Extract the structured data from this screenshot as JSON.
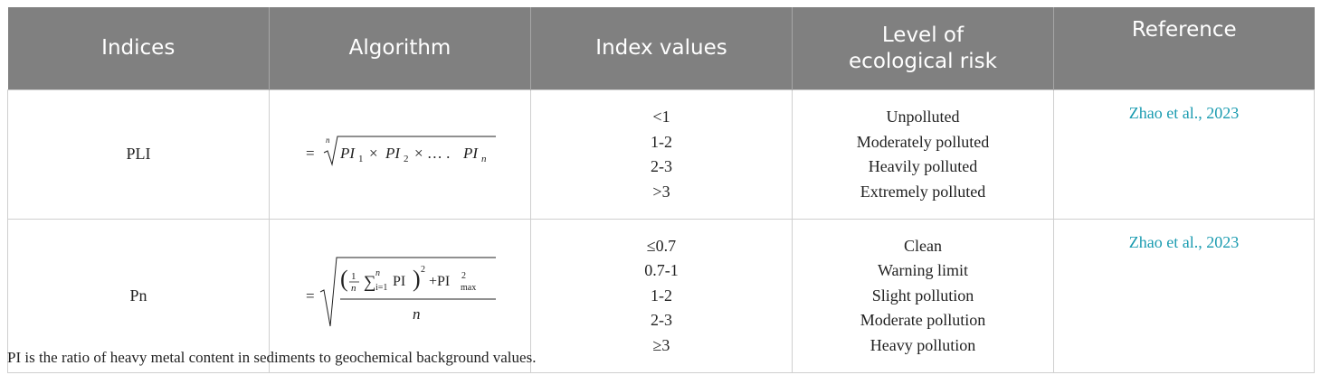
{
  "headers": {
    "indices": "Indices",
    "algorithm": "Algorithm",
    "index_values": "Index values",
    "level_line1": "Level of",
    "level_line2": "ecological risk",
    "reference": "Reference"
  },
  "rows": [
    {
      "index": "PLI",
      "formula": {
        "eq": "=",
        "root_index": "n",
        "t1": "PI",
        "s1": "1",
        "x1": "×",
        "t2": "PI",
        "s2": "2",
        "x2": "× … .",
        "t3": "PI",
        "s3": "n"
      },
      "values": [
        "<1",
        "1-2",
        "2-3",
        ">3"
      ],
      "levels": [
        "Unpolluted",
        "Moderately polluted",
        "Heavily polluted",
        "Extremely polluted"
      ],
      "reference": "Zhao et al., 2023"
    },
    {
      "index": "Pn",
      "formula": {
        "eq": "=",
        "frac_1": "1",
        "frac_n": "n",
        "sum": "∑",
        "sum_sub": "i=1",
        "sum_sup": "n",
        "pi": "PI",
        "square": "2",
        "plus_pi": "+PI",
        "max_sup": "2",
        "max_sub": "max",
        "denominator": "n"
      },
      "values": [
        "≤0.7",
        "0.7-1",
        "1-2",
        "2-3",
        "≥3"
      ],
      "levels": [
        "Clean",
        "Warning limit",
        "Slight pollution",
        "Moderate pollution",
        "Heavy pollution"
      ],
      "reference": "Zhao et al., 2023"
    }
  ],
  "footnote": "PI is the ratio of heavy metal content in sediments to geochemical background values."
}
